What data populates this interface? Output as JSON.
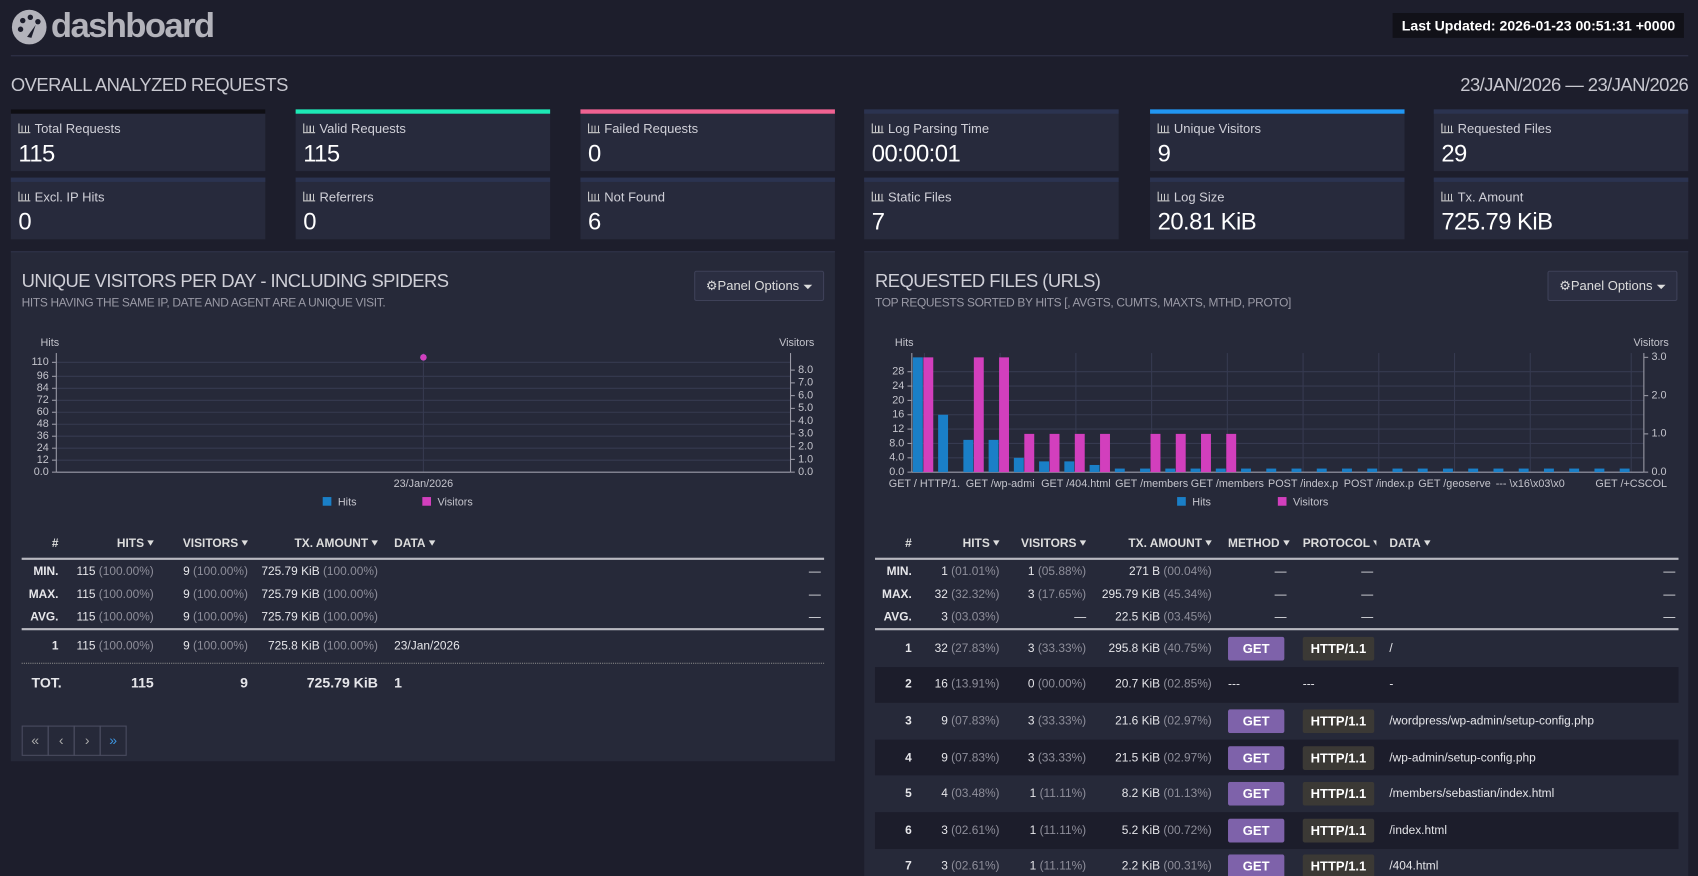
{
  "header": {
    "title": "dashboard",
    "last_updated": "Last Updated: 2026-01-23 00:51:31 +0000"
  },
  "overall": {
    "title": "OVERALL ANALYZED REQUESTS",
    "date_range": "23/JAN/2026 — 23/JAN/2026",
    "cards": [
      {
        "label": "Total Requests",
        "value": "115",
        "color": "#0f0f14"
      },
      {
        "label": "Valid Requests",
        "value": "115",
        "color": "#1de9b6"
      },
      {
        "label": "Failed Requests",
        "value": "0",
        "color": "#f06292"
      },
      {
        "label": "Log Parsing Time",
        "value": "00:00:01",
        "color": "#2b3350"
      },
      {
        "label": "Unique Visitors",
        "value": "9",
        "color": "#2196f3"
      },
      {
        "label": "Requested Files",
        "value": "29",
        "color": "#2b3350"
      },
      {
        "label": "Excl. IP Hits",
        "value": "0",
        "color": "#2b3350"
      },
      {
        "label": "Referrers",
        "value": "0",
        "color": "#2b3350"
      },
      {
        "label": "Not Found",
        "value": "6",
        "color": "#2b3350"
      },
      {
        "label": "Static Files",
        "value": "7",
        "color": "#2b3350"
      },
      {
        "label": "Log Size",
        "value": "20.81 KiB",
        "color": "#2b3350"
      },
      {
        "label": "Tx. Amount",
        "value": "725.79 KiB",
        "color": "#2b3350"
      }
    ]
  },
  "panels": [
    {
      "title": "UNIQUE VISITORS PER DAY - INCLUDING SPIDERS",
      "subtitle": "HITS HAVING THE SAME IP, DATE AND AGENT ARE A UNIQUE VISIT.",
      "options": "Panel Options",
      "table": {
        "columns": [
          "#",
          "HITS",
          "VISITORS",
          "TX. AMOUNT",
          "DATA"
        ],
        "summary": [
          {
            "label": "MIN.",
            "cells": [
              [
                "115",
                "(100.00%)"
              ],
              [
                "9",
                "(100.00%)"
              ],
              [
                "725.79 KiB",
                "(100.00%)"
              ],
              "—"
            ]
          },
          {
            "label": "MAX.",
            "cells": [
              [
                "115",
                "(100.00%)"
              ],
              [
                "9",
                "(100.00%)"
              ],
              [
                "725.79 KiB",
                "(100.00%)"
              ],
              "—"
            ]
          },
          {
            "label": "AVG.",
            "cells": [
              [
                "115",
                "(100.00%)"
              ],
              [
                "9",
                "(100.00%)"
              ],
              [
                "725.79 KiB",
                "(100.00%)"
              ],
              "—"
            ]
          }
        ],
        "rows": [
          {
            "index": "1",
            "cells": [
              [
                "115",
                "(100.00%)"
              ],
              [
                "9",
                "(100.00%)"
              ],
              [
                "725.8 KiB",
                "(100.00%)"
              ],
              "23/Jan/2026"
            ]
          }
        ],
        "total": {
          "label": "TOT.",
          "cells": [
            "115",
            "9",
            "725.79 KiB",
            "1"
          ]
        }
      },
      "pagination": [
        "«",
        "‹",
        "›",
        "»"
      ]
    },
    {
      "title": "REQUESTED FILES (URLS)",
      "subtitle": "TOP REQUESTS SORTED BY HITS [, AVGTS, CUMTS, MAXTS, MTHD, PROTO]",
      "options": "Panel Options",
      "table": {
        "columns": [
          "#",
          "HITS",
          "VISITORS",
          "TX. AMOUNT",
          "METHOD",
          "PROTOCOL",
          "DATA"
        ],
        "summary": [
          {
            "label": "MIN.",
            "cells": [
              [
                "1",
                "(01.01%)"
              ],
              [
                "1",
                "(05.88%)"
              ],
              [
                "271 B",
                "(00.04%)"
              ],
              "—",
              "—",
              "—"
            ]
          },
          {
            "label": "MAX.",
            "cells": [
              [
                "32",
                "(32.32%)"
              ],
              [
                "3",
                "(17.65%)"
              ],
              [
                "295.79 KiB",
                "(45.34%)"
              ],
              "—",
              "—",
              "—"
            ]
          },
          {
            "label": "AVG.",
            "cells": [
              [
                "3",
                "(03.03%)"
              ],
              "—",
              [
                "22.5 KiB",
                "(03.45%)"
              ],
              "—",
              "—",
              "—"
            ]
          }
        ],
        "rows": [
          {
            "index": "1",
            "cells": [
              [
                "32",
                "(27.83%)"
              ],
              [
                "3",
                "(33.33%)"
              ],
              [
                "295.8 KiB",
                "(40.75%)"
              ],
              "GET",
              "HTTP/1.1",
              "/"
            ]
          },
          {
            "index": "2",
            "cells": [
              [
                "16",
                "(13.91%)"
              ],
              [
                "0",
                "(00.00%)"
              ],
              [
                "20.7 KiB",
                "(02.85%)"
              ],
              "---",
              "---",
              "-"
            ]
          },
          {
            "index": "3",
            "cells": [
              [
                "9",
                "(07.83%)"
              ],
              [
                "3",
                "(33.33%)"
              ],
              [
                "21.6 KiB",
                "(02.97%)"
              ],
              "GET",
              "HTTP/1.1",
              "/wordpress/wp-admin/setup-config.php"
            ]
          },
          {
            "index": "4",
            "cells": [
              [
                "9",
                "(07.83%)"
              ],
              [
                "3",
                "(33.33%)"
              ],
              [
                "21.5 KiB",
                "(02.97%)"
              ],
              "GET",
              "HTTP/1.1",
              "/wp-admin/setup-config.php"
            ]
          },
          {
            "index": "5",
            "cells": [
              [
                "4",
                "(03.48%)"
              ],
              [
                "1",
                "(11.11%)"
              ],
              [
                "8.2 KiB",
                "(01.13%)"
              ],
              "GET",
              "HTTP/1.1",
              "/members/sebastian/index.html"
            ]
          },
          {
            "index": "6",
            "cells": [
              [
                "3",
                "(02.61%)"
              ],
              [
                "1",
                "(11.11%)"
              ],
              [
                "5.2 KiB",
                "(00.72%)"
              ],
              "GET",
              "HTTP/1.1",
              "/index.html"
            ]
          },
          {
            "index": "7",
            "cells": [
              [
                "3",
                "(02.61%)"
              ],
              [
                "1",
                "(11.11%)"
              ],
              [
                "2.2 KiB",
                "(00.31%)"
              ],
              "GET",
              "HTTP/1.1",
              "/404.html"
            ]
          }
        ]
      }
    }
  ],
  "chart_data": [
    {
      "type": "line",
      "y_label": "Hits",
      "y2_label": "Visitors",
      "categories": [
        "23/Jan/2026"
      ],
      "series": [
        {
          "name": "Hits",
          "color": "#1a7fc7",
          "values": [
            115
          ]
        },
        {
          "name": "Visitors",
          "color": "#d23fbd",
          "values": [
            9
          ],
          "axis": "y2"
        }
      ],
      "ylim": [
        0,
        115
      ],
      "yticks": [
        {
          "value": 0,
          "label": "0.0"
        },
        12,
        24,
        36,
        48,
        60,
        72,
        84,
        96,
        110
      ],
      "y2lim": [
        0,
        9
      ],
      "y2ticks": [
        {
          "value": 0,
          "label": "0.0"
        },
        {
          "value": 1,
          "label": "1.0"
        },
        {
          "value": 2,
          "label": "2.0"
        },
        {
          "value": 3,
          "label": "3.0"
        },
        {
          "value": 4,
          "label": "4.0"
        },
        {
          "value": 5,
          "label": "5.0"
        },
        {
          "value": 6,
          "label": "6.0"
        },
        {
          "value": 7,
          "label": "7.0"
        },
        {
          "value": 8,
          "label": "8.0"
        }
      ],
      "grid": true
    },
    {
      "type": "bar",
      "y_label": "Hits",
      "y2_label": "Visitors",
      "categories": [
        "GET / HTTP/1.",
        null,
        null,
        "GET /wp-admi",
        null,
        null,
        "GET /404.html",
        null,
        null,
        "GET /members",
        null,
        null,
        "GET /members",
        null,
        null,
        "POST /index.p",
        null,
        null,
        "POST /index.p",
        null,
        null,
        "GET /geoserve",
        null,
        null,
        "--- \\x16\\x03\\x0",
        null,
        null,
        null,
        "GET /+CSCOL"
      ],
      "series": [
        {
          "name": "Hits",
          "color": "#1a7fc7",
          "values": [
            32,
            16,
            9,
            9,
            4,
            3,
            3,
            2,
            1,
            1,
            1,
            1,
            1,
            1,
            1,
            1,
            1,
            1,
            1,
            1,
            1,
            1,
            1,
            1,
            1,
            1,
            1,
            1,
            1
          ]
        },
        {
          "name": "Visitors",
          "color": "#d23fbd",
          "values": [
            3,
            0,
            3,
            3,
            1,
            1,
            1,
            1,
            0,
            1,
            1,
            1,
            1,
            0,
            0,
            0,
            0,
            0,
            0,
            0,
            0,
            0,
            0,
            0,
            0,
            0,
            0,
            0,
            0
          ],
          "axis": "y2"
        }
      ],
      "ylim": [
        0,
        32
      ],
      "yticks": [
        {
          "value": 0,
          "label": "0.0"
        },
        {
          "value": 4,
          "label": "4.0"
        },
        {
          "value": 8,
          "label": "8.0"
        },
        12,
        16,
        20,
        24,
        28
      ],
      "y2lim": [
        0,
        3
      ],
      "y2ticks": [
        {
          "value": 0,
          "label": "0.0"
        },
        {
          "value": 1,
          "label": "1.0"
        },
        {
          "value": 2,
          "label": "2.0"
        },
        {
          "value": 3,
          "label": "3.0"
        }
      ],
      "grid": true
    }
  ]
}
